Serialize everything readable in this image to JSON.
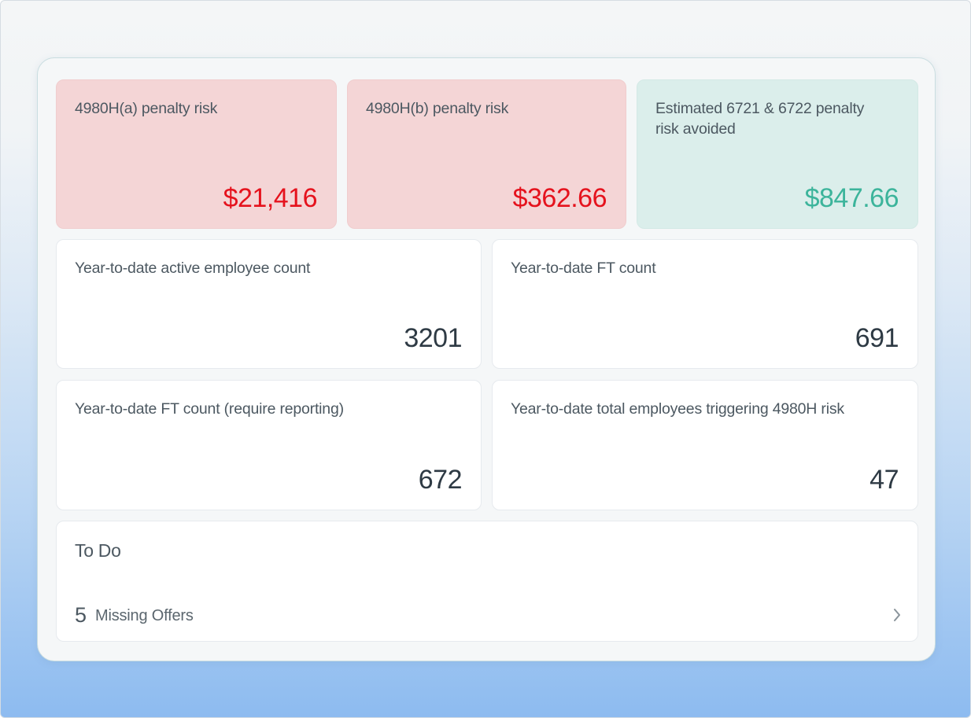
{
  "cards": [
    {
      "label": "4980H(a) penalty risk",
      "value": "$21,416"
    },
    {
      "label": "4980H(b) penalty risk",
      "value": "$362.66"
    },
    {
      "label": "Estimated 6721 & 6722 penalty risk avoided",
      "value": "$847.66"
    },
    {
      "label": "Year-to-date active employee count",
      "value": 3201
    },
    {
      "label": "Year-to-date FT count",
      "value": 691
    },
    {
      "label": "Year-to-date FT count (require reporting)",
      "value": 672
    },
    {
      "label": "Year-to-date total employees triggering 4980H risk",
      "value": 47
    }
  ],
  "todo": {
    "title": "To Do",
    "items": [
      {
        "count": 5,
        "label": "Missing Offers"
      }
    ]
  }
}
